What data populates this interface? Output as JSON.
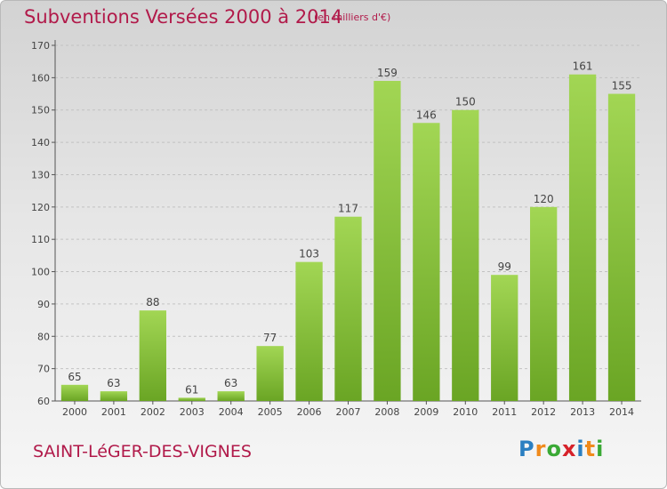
{
  "header": {
    "title": "Subventions Versées 2000 à 2014",
    "subtitle": "(en milliers d'€)"
  },
  "footer": {
    "commune": "SAINT-LéGER-DES-VIGNES",
    "logo": [
      "P",
      "r",
      "o",
      "x",
      "i",
      "t",
      "i"
    ],
    "logo_colors": [
      "#2b7fc1",
      "#f08a1c",
      "#3aa935",
      "#d6222a",
      "#2b7fc1",
      "#f08a1c",
      "#3aa935"
    ]
  },
  "colors": {
    "bar_light": "#a2d654",
    "bar_dark": "#6aa524",
    "title": "#b11a4a",
    "grid": "#c2c2c2"
  },
  "chart_data": {
    "type": "bar",
    "title": "Subventions Versées 2000 à 2014",
    "subtitle": "(en milliers d'€)",
    "categories": [
      "2000",
      "2001",
      "2002",
      "2003",
      "2004",
      "2005",
      "2006",
      "2007",
      "2008",
      "2009",
      "2010",
      "2011",
      "2012",
      "2013",
      "2014"
    ],
    "values": [
      65,
      63,
      88,
      61,
      63,
      77,
      103,
      117,
      159,
      146,
      150,
      99,
      120,
      161,
      155
    ],
    "ylim": [
      60,
      170
    ],
    "yticks": [
      60,
      70,
      80,
      90,
      100,
      110,
      120,
      130,
      140,
      150,
      160,
      170
    ],
    "grid": true,
    "data_labels": true
  }
}
